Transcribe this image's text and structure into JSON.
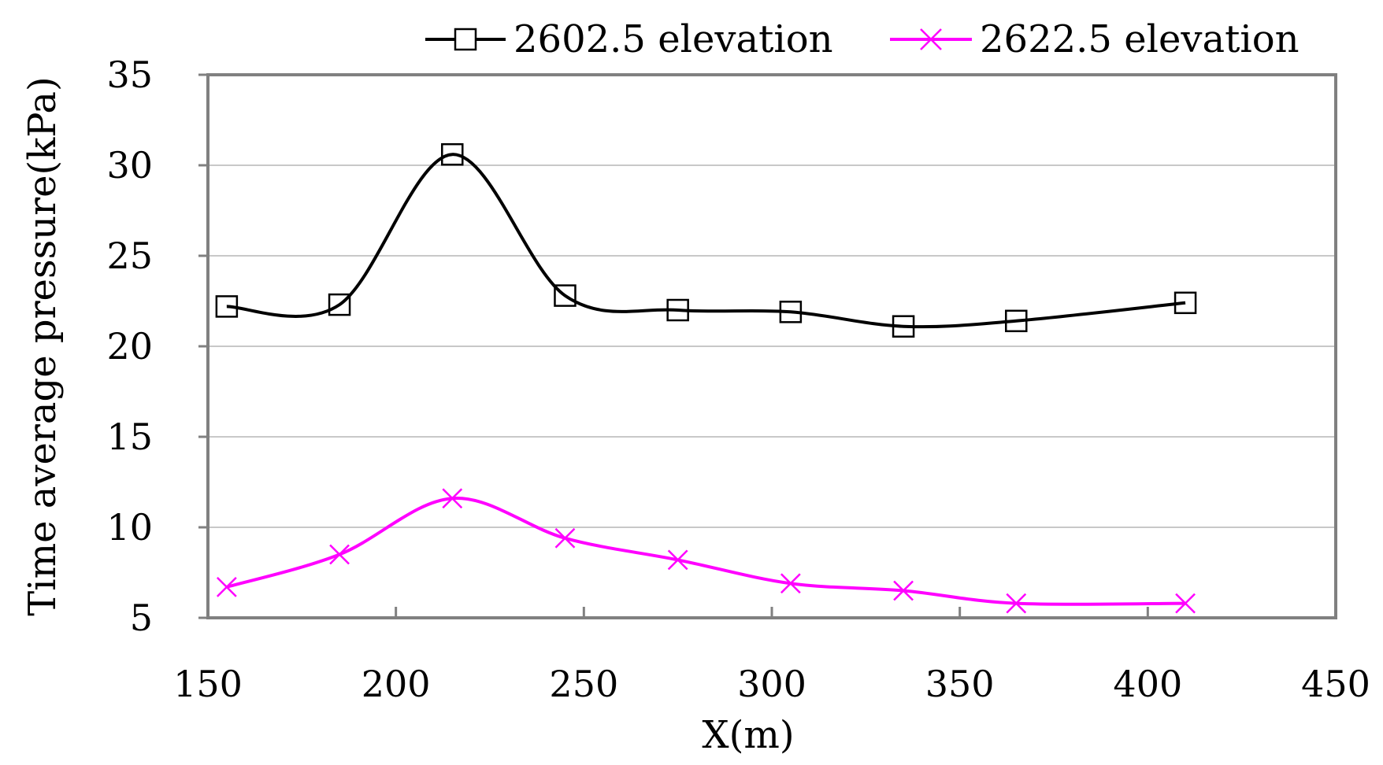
{
  "chart_data": {
    "type": "line",
    "title": "",
    "xlabel": "X(m)",
    "ylabel": "Time average pressure(kPa)",
    "xlim": [
      150,
      450
    ],
    "ylim": [
      5,
      35
    ],
    "xticks": [
      150,
      200,
      250,
      300,
      350,
      400,
      450
    ],
    "yticks": [
      5,
      10,
      15,
      20,
      25,
      30,
      35
    ],
    "grid": "horizontal",
    "legend_position": "top",
    "series": [
      {
        "name": "2602.5 elevation",
        "color": "#000000",
        "marker": "square",
        "x": [
          155,
          185,
          215,
          245,
          275,
          305,
          335,
          365,
          410
        ],
        "y": [
          22.2,
          22.3,
          30.6,
          22.8,
          22.0,
          21.9,
          21.1,
          21.4,
          22.4
        ]
      },
      {
        "name": "2622.5 elevation",
        "color": "#ff00ff",
        "marker": "x",
        "x": [
          155,
          185,
          215,
          245,
          275,
          305,
          335,
          365,
          410
        ],
        "y": [
          6.7,
          8.5,
          11.6,
          9.4,
          8.2,
          6.9,
          6.5,
          5.8,
          5.8
        ]
      }
    ]
  }
}
